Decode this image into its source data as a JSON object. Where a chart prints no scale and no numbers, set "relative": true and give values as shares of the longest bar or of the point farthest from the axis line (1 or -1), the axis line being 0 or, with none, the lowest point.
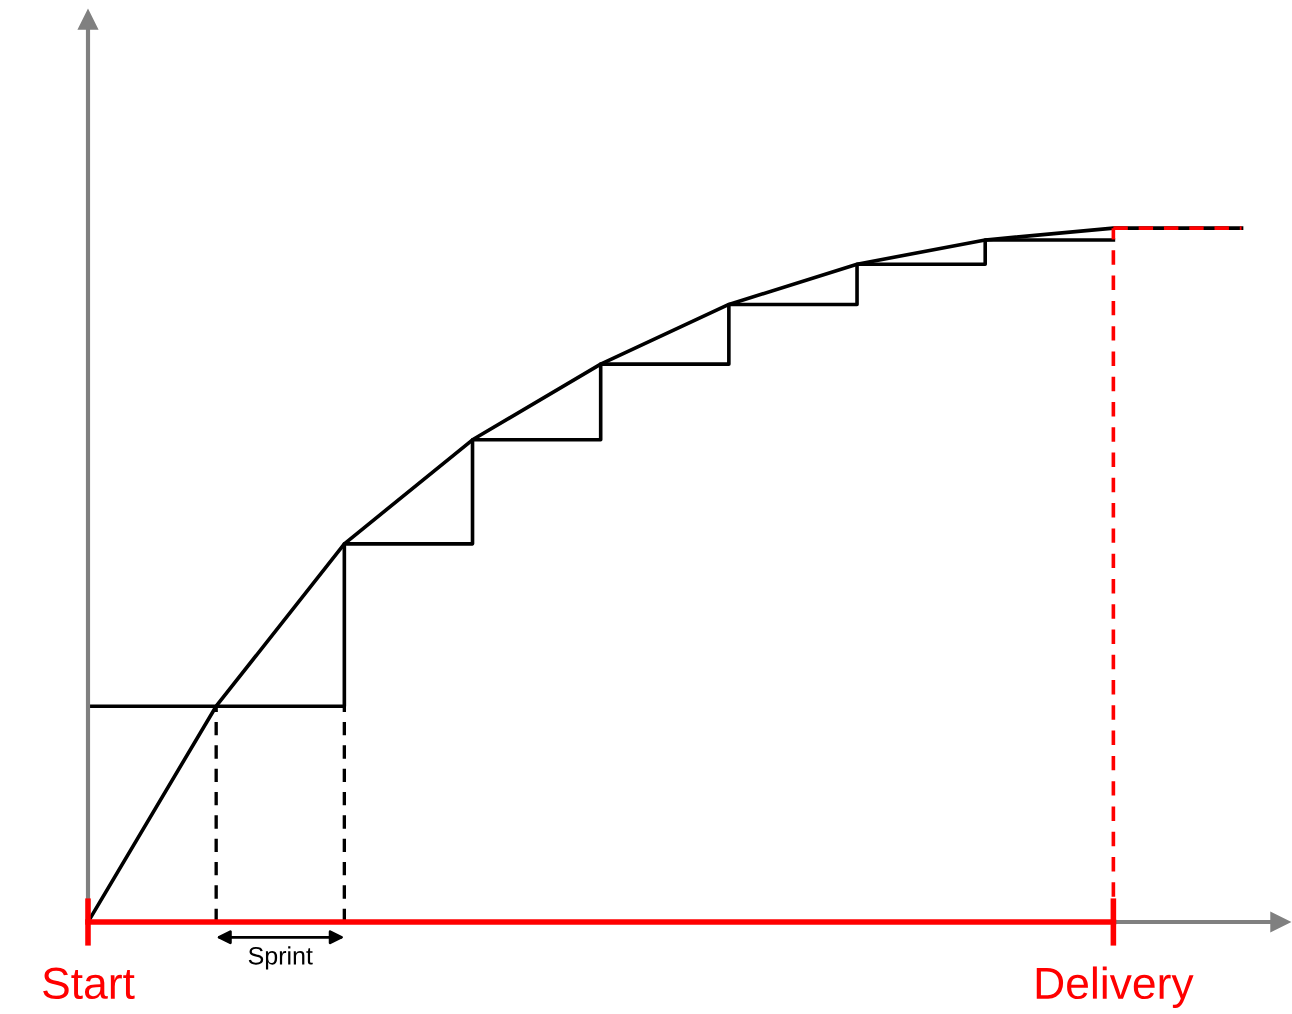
{
  "chart_data": {
    "type": "line",
    "relative": true,
    "tick_labels": "x",
    "categories": [
      "Start",
      null,
      null,
      null,
      null,
      null,
      null,
      null,
      "Delivery",
      null
    ],
    "series": [
      {
        "color": "#000000",
        "values": [
          0,
          0.311,
          0.545,
          0.695,
          0.804,
          0.89,
          0.948,
          0.983,
          1.0,
          1.0
        ]
      },
      {
        "type": "step",
        "color": "#000000",
        "values": [
          0.311,
          0.311,
          0.545,
          0.695,
          0.804,
          0.89,
          0.948,
          0.983,
          0.983,
          null
        ]
      },
      {
        "type": "line",
        "color": "#ff0000",
        "line_style": "dashed",
        "values": [
          null,
          null,
          null,
          null,
          null,
          null,
          null,
          null,
          1.0,
          1.0
        ]
      }
    ],
    "ref_lines": [
      {
        "axis": "x",
        "value": "Delivery",
        "color": "#ff0000",
        "line_style": "dashed"
      }
    ],
    "annotations": [
      "Sprint"
    ]
  }
}
